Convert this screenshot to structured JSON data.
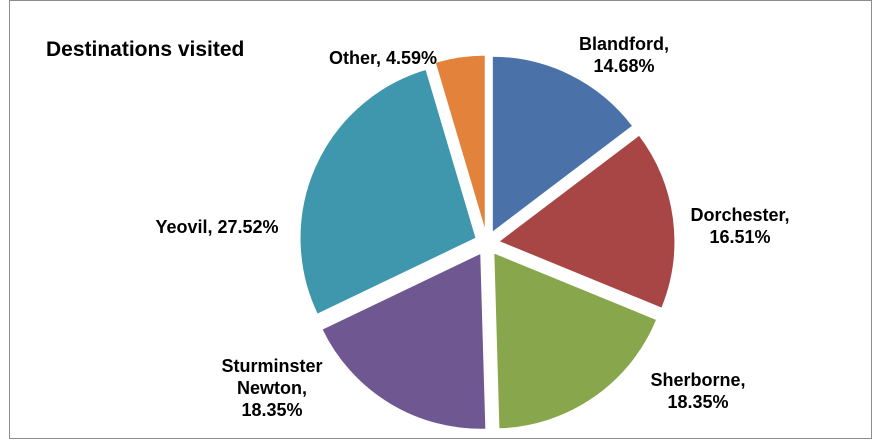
{
  "chart_data": {
    "type": "pie",
    "title": "Destinations visited",
    "slices": [
      {
        "name": "Blandford",
        "value": 14.68,
        "label_lines": [
          "Blandford,",
          "14.68%"
        ],
        "color": "#4a72a9"
      },
      {
        "name": "Dorchester",
        "value": 16.51,
        "label_lines": [
          "Dorchester,",
          "16.51%"
        ],
        "color": "#a84545"
      },
      {
        "name": "Sherborne",
        "value": 18.35,
        "label_lines": [
          "Sherborne,",
          "18.35%"
        ],
        "color": "#88a64c"
      },
      {
        "name": "Sturminster Newton",
        "value": 18.35,
        "label_lines": [
          "Sturminster",
          "Newton,",
          "18.35%"
        ],
        "color": "#6f5891"
      },
      {
        "name": "Yeovil",
        "value": 27.52,
        "label_lines": [
          "Yeovil, 27.52%"
        ],
        "color": "#3f97ae"
      },
      {
        "name": "Other",
        "value": 4.59,
        "label_lines": [
          "Other, 4.59%"
        ],
        "color": "#e2823b"
      }
    ],
    "exploded": true,
    "legend": "none"
  }
}
